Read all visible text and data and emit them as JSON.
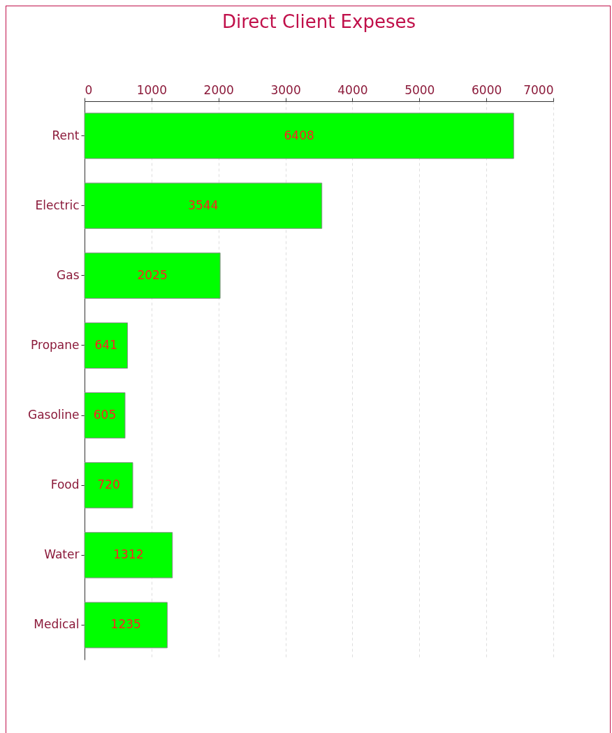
{
  "chart_data": {
    "type": "bar",
    "title": "Direct Client Expeses",
    "orientation": "horizontal",
    "categories": [
      "Rent",
      "Electric",
      "Gas",
      "Propane",
      "Gasoline",
      "Food",
      "Water",
      "Medical"
    ],
    "values": [
      6408,
      3544,
      2025,
      641,
      605,
      720,
      1312,
      1235
    ],
    "color": "#00ff00",
    "xlim": [
      0,
      7000
    ],
    "xticks": [
      0,
      1000,
      2000,
      3000,
      4000,
      5000,
      6000,
      7000
    ],
    "grid": true,
    "data_labels": true
  }
}
